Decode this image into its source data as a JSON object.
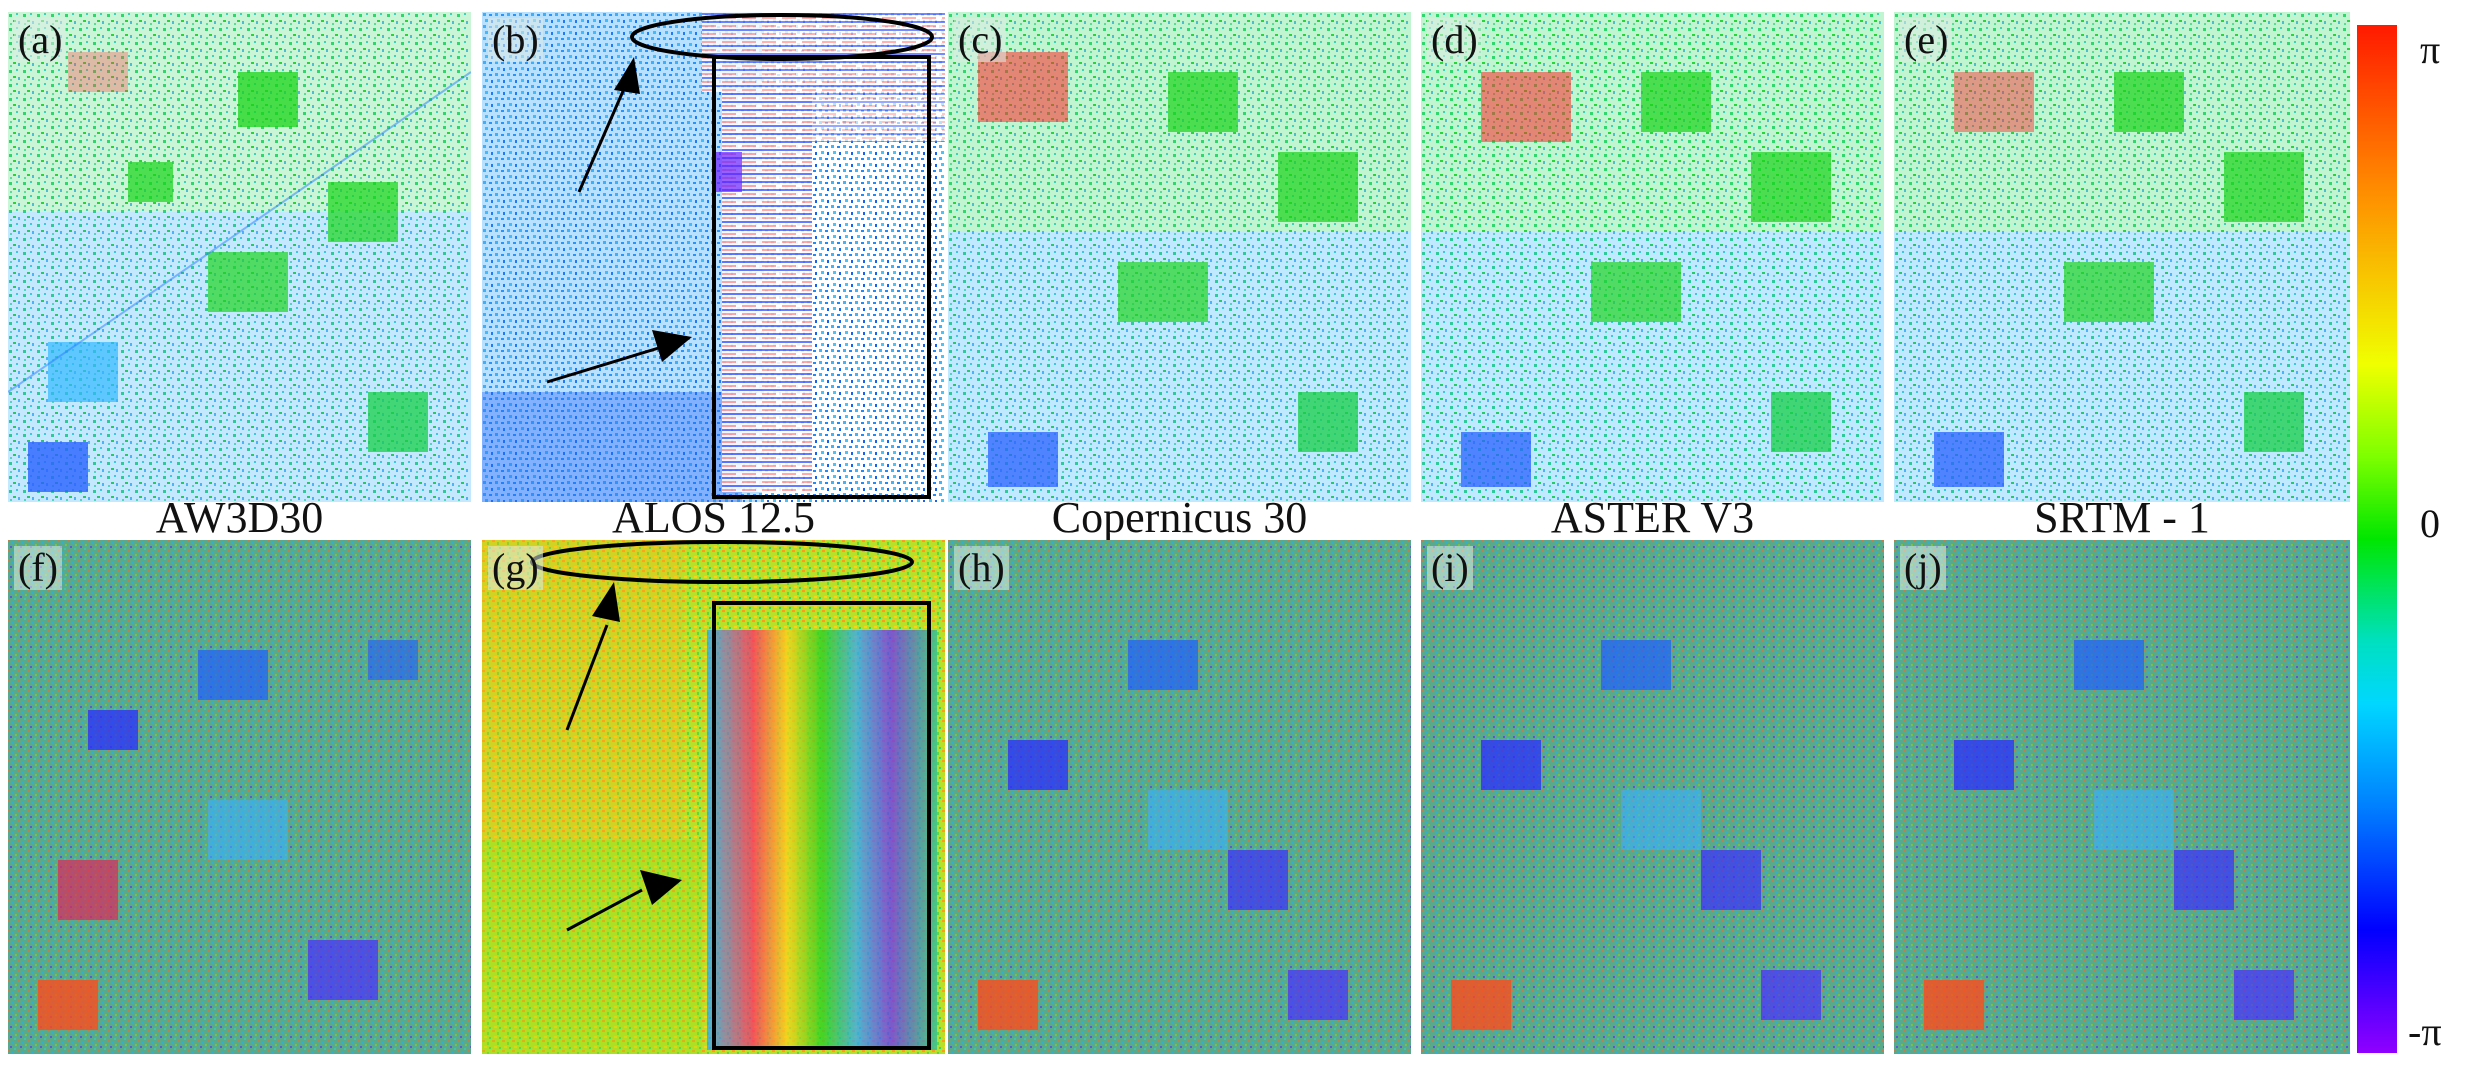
{
  "panels_top": [
    {
      "tag": "(a)",
      "tone": "sparse"
    },
    {
      "tag": "(b)",
      "tone": "sparse-artifact"
    },
    {
      "tag": "(c)",
      "tone": "sparse"
    },
    {
      "tag": "(d)",
      "tone": "sparse"
    },
    {
      "tag": "(e)",
      "tone": "sparse"
    }
  ],
  "panels_bottom": [
    {
      "tag": "(f)",
      "tone": "dense"
    },
    {
      "tag": "(g)",
      "tone": "dense-artifact"
    },
    {
      "tag": "(h)",
      "tone": "dense"
    },
    {
      "tag": "(i)",
      "tone": "dense"
    },
    {
      "tag": "(j)",
      "tone": "dense"
    }
  ],
  "captions": [
    "AW3D30",
    "ALOS 12.5",
    "Copernicus 30",
    "ASTER V3",
    "SRTM - 1"
  ],
  "colorbar": {
    "top": "π",
    "middle": "0",
    "bottom": "-π"
  },
  "colors": {
    "red": "#ff1a00",
    "orange": "#ff8c00",
    "yellow": "#f0ff00",
    "green": "#00e600",
    "cyan": "#00d7ff",
    "blue": "#0000ff",
    "violet": "#9000ff"
  }
}
